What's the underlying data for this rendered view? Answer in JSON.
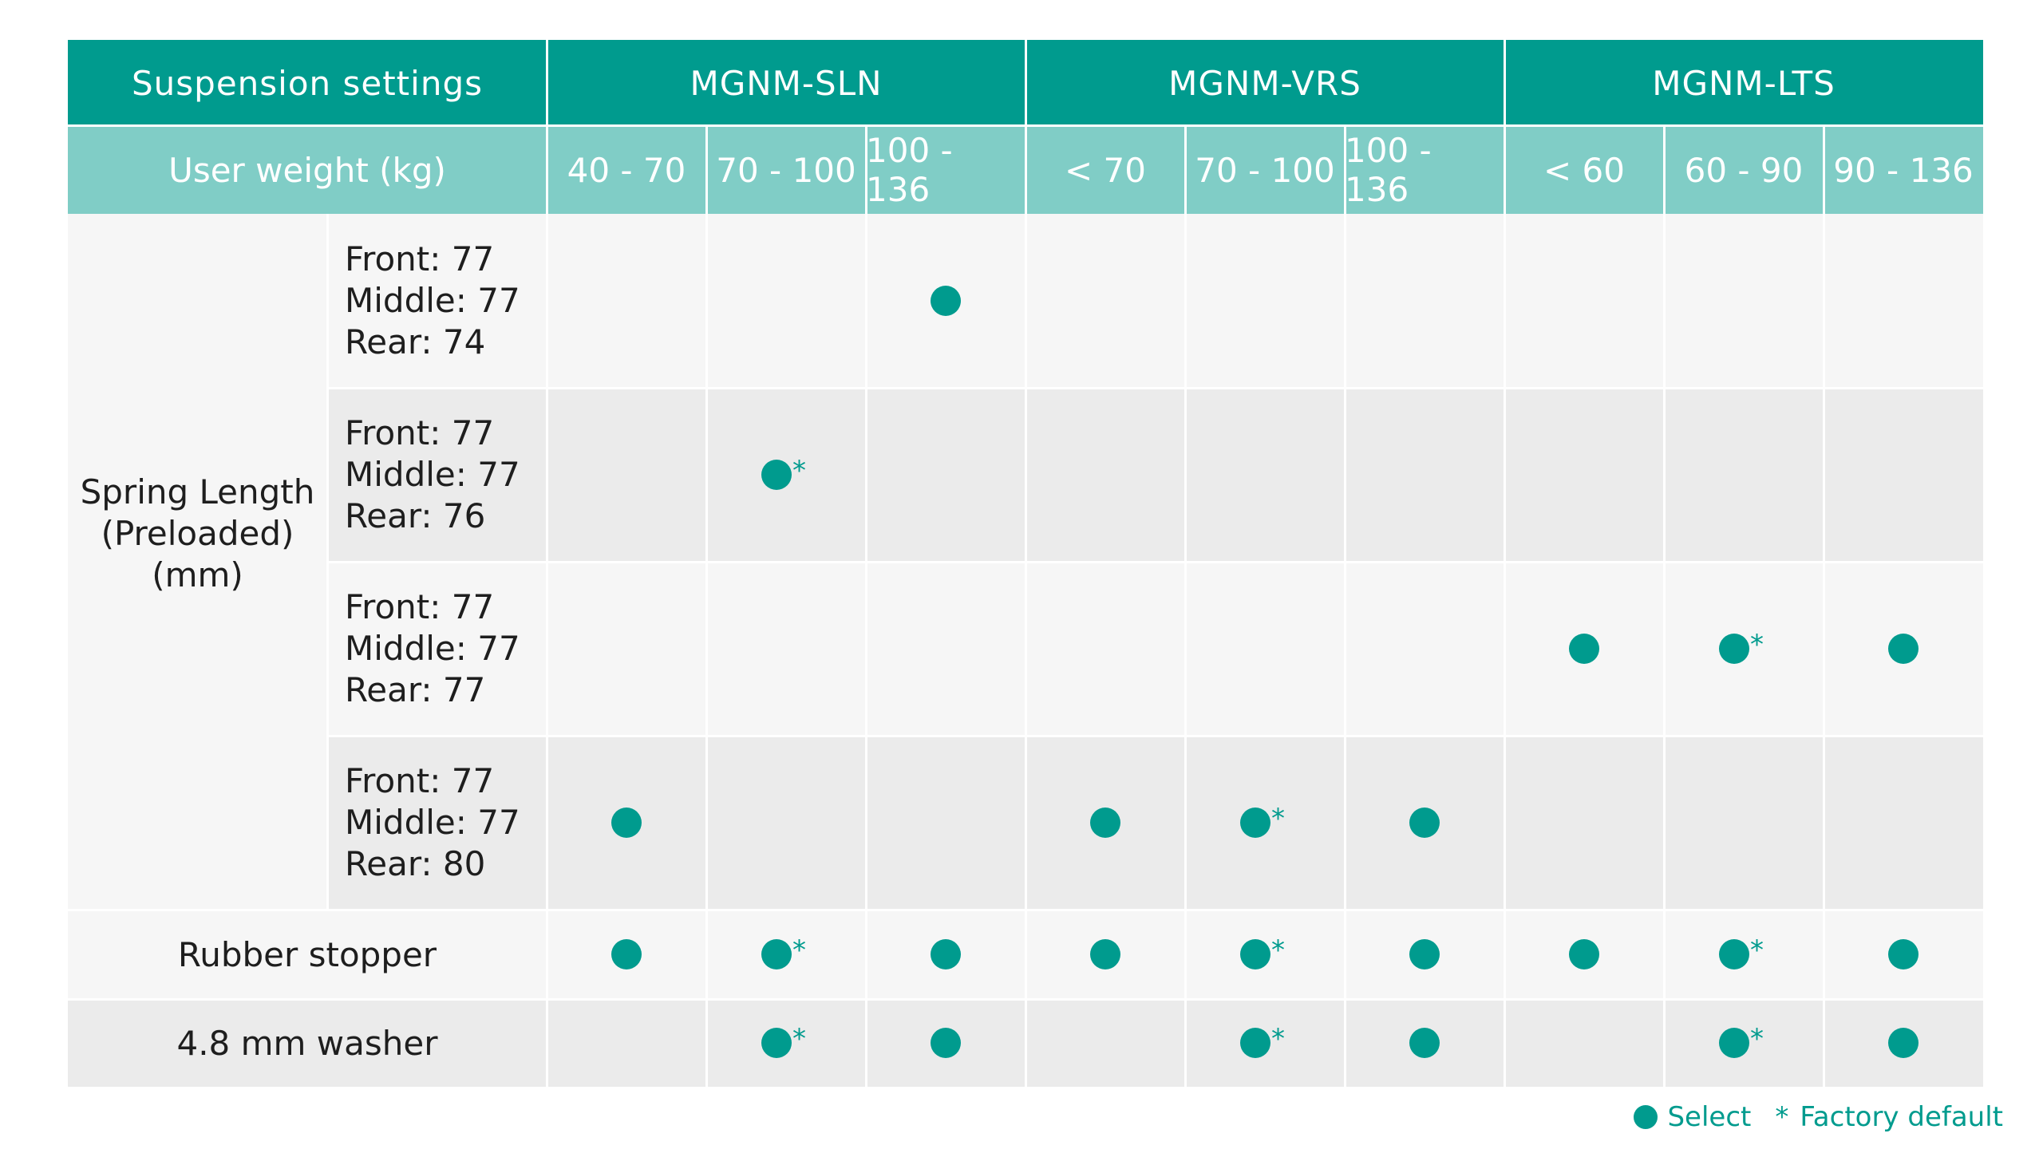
{
  "header": {
    "settings_label": "Suspension settings",
    "weight_label": "User weight (kg)",
    "models": [
      "MGNM-SLN",
      "MGNM-VRS",
      "MGNM-LTS"
    ],
    "weight_ranges": [
      "40 - 70",
      "70 - 100",
      "100 - 136",
      "< 70",
      "70 - 100",
      "100 - 136",
      "< 60",
      "60 - 90",
      "90 - 136"
    ]
  },
  "spring_group_label": "Spring Length (Preloaded) (mm)",
  "spring_group_lines": [
    "Spring Length",
    "(Preloaded)",
    "(mm)"
  ],
  "rows": [
    {
      "lines": [
        "Front: 77",
        "Middle: 77",
        "Rear: 74"
      ],
      "marks": [
        "",
        "",
        "select",
        "",
        "",
        "",
        "",
        "",
        ""
      ]
    },
    {
      "lines": [
        "Front: 77",
        "Middle: 77",
        "Rear: 76"
      ],
      "marks": [
        "",
        "select+default",
        "",
        "",
        "",
        "",
        "",
        "",
        ""
      ]
    },
    {
      "lines": [
        "Front: 77",
        "Middle: 77",
        "Rear: 77"
      ],
      "marks": [
        "",
        "",
        "",
        "",
        "",
        "",
        "select",
        "select+default",
        "select"
      ]
    },
    {
      "lines": [
        "Front: 77",
        "Middle: 77",
        "Rear: 80"
      ],
      "marks": [
        "select",
        "",
        "",
        "select",
        "select+default",
        "select",
        "",
        "",
        ""
      ]
    },
    {
      "label": "Rubber stopper",
      "marks": [
        "select",
        "select+default",
        "select",
        "select",
        "select+default",
        "select",
        "select",
        "select+default",
        "select"
      ]
    },
    {
      "label": "4.8 mm washer",
      "marks": [
        "",
        "select+default",
        "select",
        "",
        "select+default",
        "select",
        "",
        "select+default",
        "select"
      ]
    }
  ],
  "legend": {
    "select": "Select",
    "star": "*",
    "default": "Factory default"
  },
  "colors": {
    "accent": "#009b8e",
    "accent_light": "#80cdc6",
    "row_light": "#f6f6f6",
    "row_dark": "#ebebeb"
  }
}
